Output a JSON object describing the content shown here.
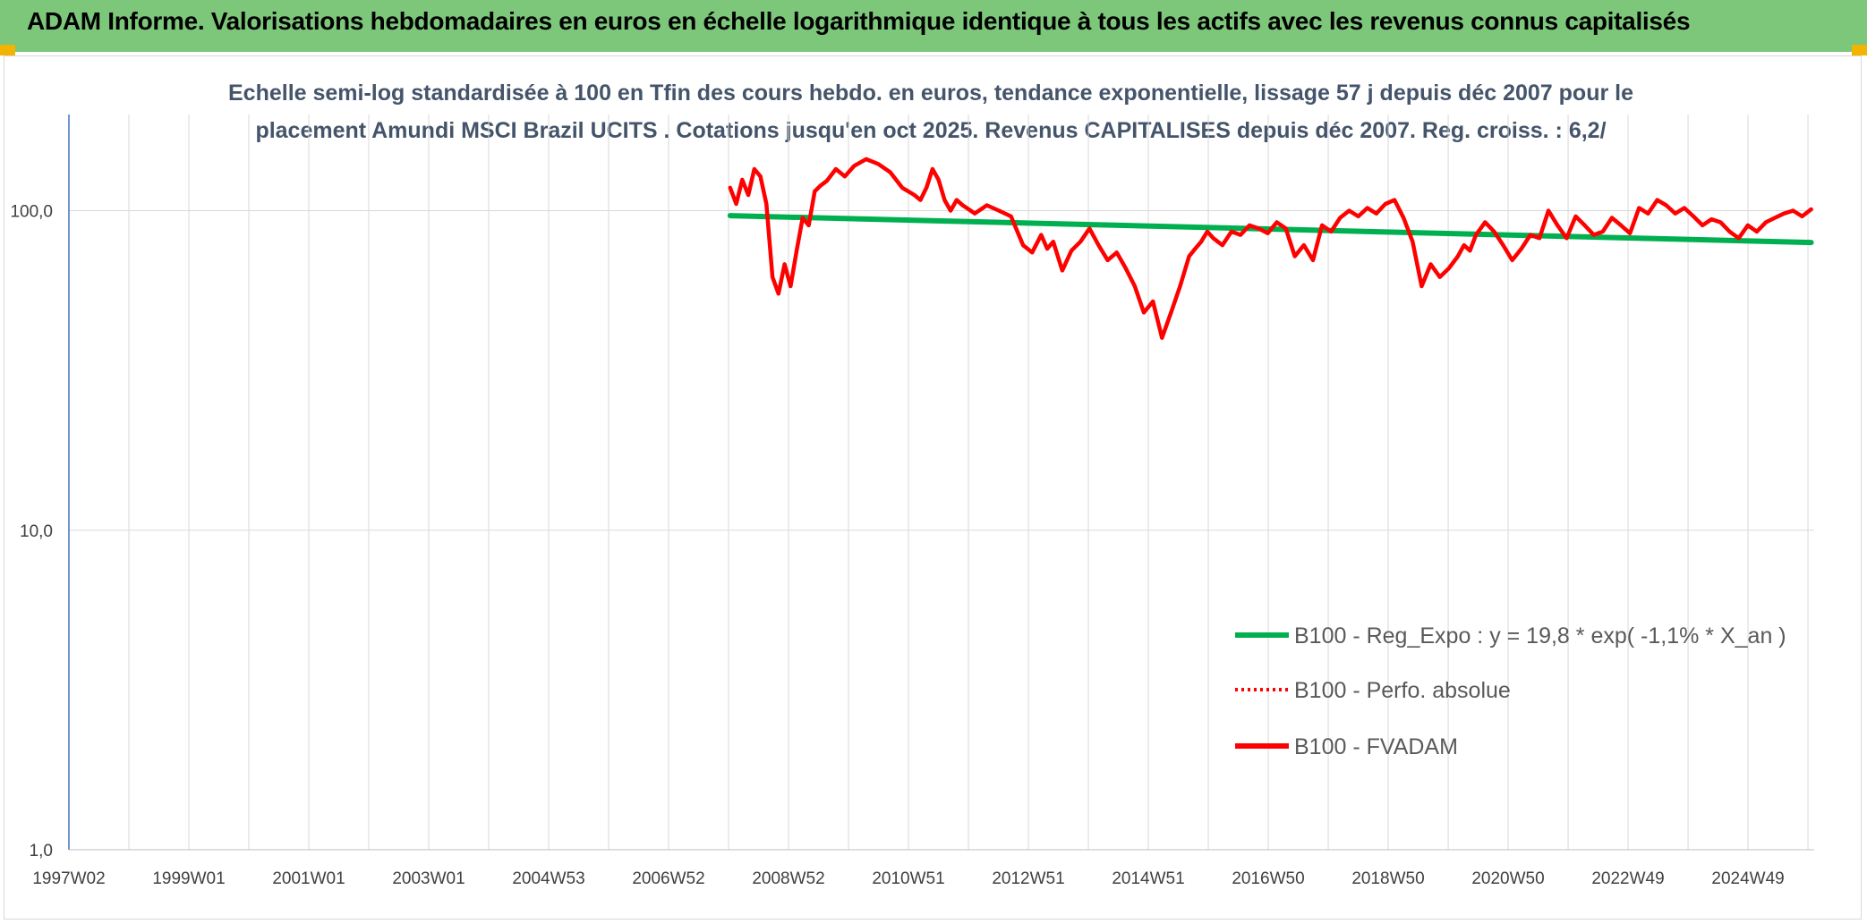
{
  "header": {
    "title": "ADAM Informe. Valorisations hebdomadaires en euros en échelle logarithmique identique à tous les actifs avec les revenus connus capitalisés"
  },
  "chart_data": {
    "type": "line",
    "title_lines": [
      "Echelle semi-log standardisée à 100 en Tfin des cours hebdo. en euros, tendance exponentielle, lissage 57 j depuis déc 2007 pour le",
      "placement Amundi MSCI Brazil UCITS . Cotations jusqu'en oct 2025. Revenus CAPITALISES depuis déc 2007. Reg. croiss. : 6,2/"
    ],
    "x_scale": "years",
    "xlim": [
      1997.0,
      2025.9
    ],
    "x_tick_labels": [
      "1997W02",
      "1999W01",
      "2001W01",
      "2003W01",
      "2004W53",
      "2006W52",
      "2008W52",
      "2010W51",
      "2012W51",
      "2014W51",
      "2016W50",
      "2018W50",
      "2020W50",
      "2022W49",
      "2024W49"
    ],
    "y_scale": "log",
    "ylim": [
      1,
      200
    ],
    "y_tick_labels": [
      "1,0",
      "10,0",
      "100,0"
    ],
    "grid": true,
    "legend_position": "right",
    "colors": {
      "trend": "#00b050",
      "perf": "#ff0000",
      "fvadam": "#ff0000",
      "grid": "#d9d9d9",
      "axis": "#4472c4"
    },
    "series": [
      {
        "name": "B100 - Reg_Expo : y = 19,8 * exp( -1,1% *  X_an )",
        "style": "solid",
        "color": "#00b050",
        "x": [
          2007.95,
          2025.85
        ],
        "y": [
          96.5,
          79.5
        ]
      },
      {
        "name": "B100 - Perfo. absolue",
        "style": "dotted",
        "color": "#ff0000",
        "x": [],
        "y": []
      },
      {
        "name": "B100 - FVADAM",
        "style": "solid",
        "color": "#ff0000",
        "x": [
          2007.95,
          2008.05,
          2008.15,
          2008.25,
          2008.35,
          2008.45,
          2008.55,
          2008.65,
          2008.75,
          2008.85,
          2008.95,
          2009.05,
          2009.15,
          2009.25,
          2009.35,
          2009.45,
          2009.55,
          2009.7,
          2009.85,
          2010.0,
          2010.2,
          2010.4,
          2010.6,
          2010.8,
          2011.0,
          2011.1,
          2011.2,
          2011.3,
          2011.4,
          2011.5,
          2011.6,
          2011.7,
          2011.8,
          2011.9,
          2012.0,
          2012.2,
          2012.4,
          2012.6,
          2012.8,
          2012.95,
          2013.1,
          2013.2,
          2013.3,
          2013.45,
          2013.6,
          2013.75,
          2013.9,
          2014.05,
          2014.2,
          2014.35,
          2014.5,
          2014.65,
          2014.8,
          2014.95,
          2015.1,
          2015.25,
          2015.4,
          2015.55,
          2015.65,
          2015.75,
          2015.85,
          2015.95,
          2016.1,
          2016.25,
          2016.4,
          2016.55,
          2016.7,
          2016.85,
          2017.0,
          2017.15,
          2017.3,
          2017.45,
          2017.6,
          2017.75,
          2017.9,
          2018.05,
          2018.2,
          2018.35,
          2018.5,
          2018.65,
          2018.8,
          2018.95,
          2019.1,
          2019.25,
          2019.4,
          2019.55,
          2019.7,
          2019.85,
          2020.0,
          2020.1,
          2020.2,
          2020.3,
          2020.45,
          2020.6,
          2020.75,
          2020.9,
          2021.05,
          2021.2,
          2021.35,
          2021.5,
          2021.65,
          2021.8,
          2021.95,
          2022.1,
          2022.25,
          2022.4,
          2022.55,
          2022.7,
          2022.85,
          2023.0,
          2023.15,
          2023.3,
          2023.45,
          2023.6,
          2023.75,
          2023.9,
          2024.05,
          2024.2,
          2024.35,
          2024.5,
          2024.65,
          2024.8,
          2024.95,
          2025.1,
          2025.25,
          2025.4,
          2025.55,
          2025.7,
          2025.85
        ],
        "y": [
          118,
          105,
          125,
          112,
          135,
          128,
          105,
          62,
          55,
          68,
          58,
          75,
          95,
          90,
          115,
          120,
          124,
          135,
          128,
          138,
          145,
          140,
          132,
          118,
          112,
          108,
          118,
          135,
          125,
          108,
          100,
          108,
          104,
          101,
          98,
          104,
          100,
          96,
          78,
          74,
          84,
          76,
          80,
          65,
          75,
          80,
          88,
          78,
          70,
          74,
          66,
          58,
          48,
          52,
          40,
          48,
          58,
          72,
          76,
          80,
          86,
          82,
          78,
          86,
          84,
          90,
          88,
          85,
          92,
          88,
          72,
          78,
          70,
          90,
          86,
          95,
          100,
          96,
          102,
          98,
          105,
          108,
          95,
          80,
          58,
          68,
          62,
          66,
          72,
          78,
          75,
          84,
          92,
          86,
          78,
          70,
          76,
          84,
          82,
          100,
          90,
          82,
          96,
          90,
          84,
          86,
          95,
          90,
          85,
          102,
          98,
          108,
          104,
          98,
          102,
          96,
          90,
          94,
          92,
          86,
          82,
          90,
          86,
          92,
          95,
          98,
          100,
          96,
          101
        ]
      }
    ]
  }
}
